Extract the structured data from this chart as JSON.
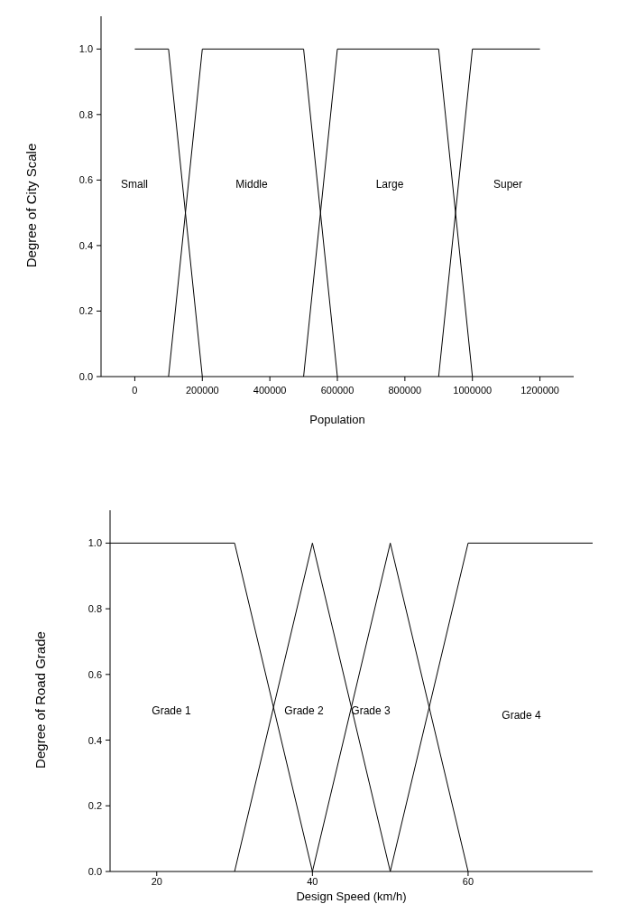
{
  "chart_data": [
    {
      "type": "line",
      "xlabel": "Population",
      "ylabel": "Degree of City Scale",
      "xlim": [
        -100000,
        1300000
      ],
      "ylim": [
        0,
        1.1
      ],
      "xticks": [
        0,
        200000,
        400000,
        600000,
        800000,
        1000000,
        1200000
      ],
      "yticks": [
        {
          "value": 0,
          "label": "0.0"
        },
        {
          "value": 0.2,
          "label": "0.2"
        },
        {
          "value": 0.4,
          "label": "0.4"
        },
        {
          "value": 0.6,
          "label": "0.6"
        },
        {
          "value": 0.8,
          "label": "0.8"
        },
        {
          "value": 1,
          "label": "1.0"
        }
      ],
      "grid": false,
      "marker": "none",
      "line_style": "solid",
      "series": [
        {
          "color": "#000000",
          "x": [
            0,
            100000,
            200000
          ],
          "values": [
            1,
            1,
            0
          ]
        },
        {
          "color": "#000000",
          "x": [
            100000,
            200000,
            500000,
            600000
          ],
          "values": [
            0,
            1,
            1,
            0
          ]
        },
        {
          "color": "#000000",
          "x": [
            500000,
            600000,
            900000,
            1000000
          ],
          "values": [
            0,
            1,
            1,
            0
          ]
        },
        {
          "color": "#000000",
          "x": [
            900000,
            1000000,
            1200000
          ],
          "values": [
            0,
            1,
            1
          ]
        }
      ],
      "annotations": [
        "Small",
        "Middle",
        "Large",
        "Super"
      ]
    },
    {
      "type": "line",
      "xlabel": "Design Speed (km/h)",
      "ylabel": "Degree of Road Grade",
      "xlim": [
        14,
        76
      ],
      "ylim": [
        0,
        1.1
      ],
      "xticks": [
        20,
        40,
        60
      ],
      "yticks": [
        {
          "value": 0,
          "label": "0.0"
        },
        {
          "value": 0.2,
          "label": "0.2"
        },
        {
          "value": 0.4,
          "label": "0.4"
        },
        {
          "value": 0.6,
          "label": "0.6"
        },
        {
          "value": 0.8,
          "label": "0.8"
        },
        {
          "value": 1,
          "label": "1.0"
        }
      ],
      "grid": false,
      "marker": "none",
      "line_style": "solid",
      "series": [
        {
          "color": "#000000",
          "x": [
            14,
            30,
            40
          ],
          "values": [
            1,
            1,
            0
          ]
        },
        {
          "color": "#000000",
          "x": [
            30,
            40,
            50
          ],
          "values": [
            0,
            1,
            0
          ]
        },
        {
          "color": "#000000",
          "x": [
            40,
            50,
            60
          ],
          "values": [
            0,
            1,
            0
          ]
        },
        {
          "color": "#000000",
          "x": [
            50,
            60,
            76
          ],
          "values": [
            0,
            1,
            1
          ]
        }
      ],
      "annotations": [
        "Grade 1",
        "Grade 2",
        "Grade 3",
        "Grade 4"
      ]
    }
  ]
}
